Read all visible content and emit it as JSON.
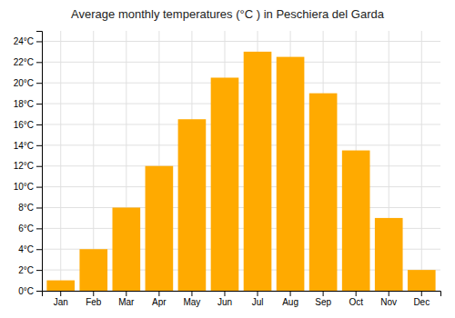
{
  "chart_data": {
    "type": "bar",
    "title": "Average monthly temperatures (°C ) in Peschiera del Garda",
    "categories": [
      "Jan",
      "Feb",
      "Mar",
      "Apr",
      "May",
      "Jun",
      "Jul",
      "Aug",
      "Sep",
      "Oct",
      "Nov",
      "Dec"
    ],
    "values": [
      1,
      4,
      8,
      12,
      16.5,
      20.5,
      23,
      22.5,
      19,
      13.5,
      7,
      2
    ],
    "color": "#FFAA00",
    "ylim": [
      0,
      25
    ],
    "yticks": [
      {
        "value": 0,
        "label": "0°C"
      },
      {
        "value": 2,
        "label": "2°C"
      },
      {
        "value": 4,
        "label": "4°C"
      },
      {
        "value": 6,
        "label": "6°C"
      },
      {
        "value": 8,
        "label": "8°C"
      },
      {
        "value": 10,
        "label": "10°C"
      },
      {
        "value": 12,
        "label": "12°C"
      },
      {
        "value": 14,
        "label": "14°C"
      },
      {
        "value": 16,
        "label": "16°C"
      },
      {
        "value": 18,
        "label": "18°C"
      },
      {
        "value": 20,
        "label": "20°C"
      },
      {
        "value": 22,
        "label": "22°C"
      },
      {
        "value": 24,
        "label": "24°C"
      }
    ],
    "grid": true
  }
}
